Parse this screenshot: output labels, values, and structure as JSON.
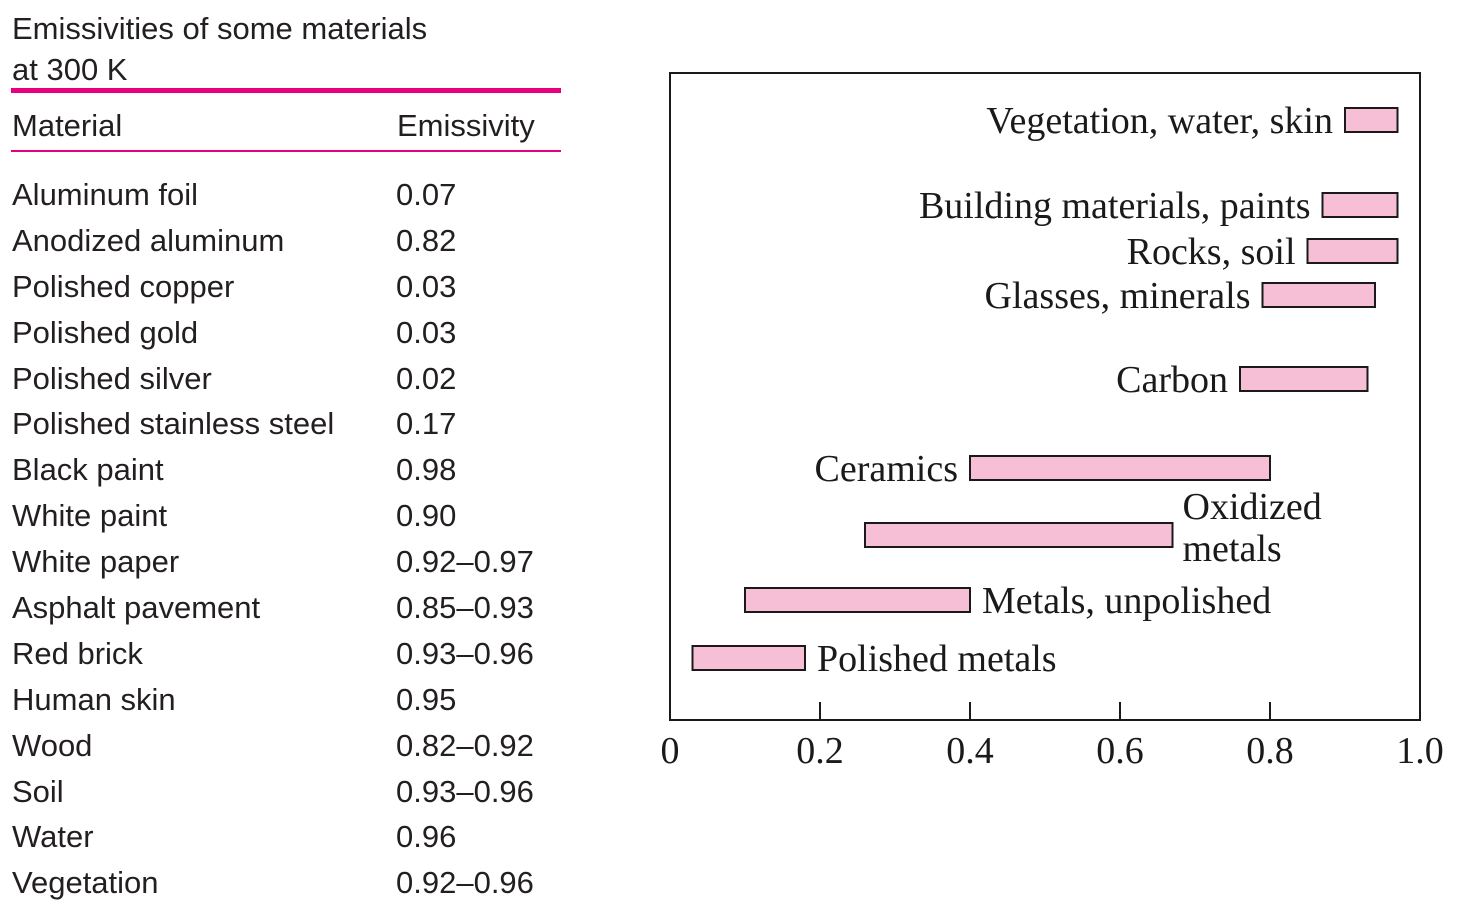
{
  "table": {
    "title_line1": "Emissivities of some materials",
    "title_line2": "at 300 K",
    "header_material": "Material",
    "header_emissivity": "Emissivity",
    "rows": [
      {
        "material": "Aluminum foil",
        "emissivity": "0.07"
      },
      {
        "material": "Anodized aluminum",
        "emissivity": "0.82"
      },
      {
        "material": "Polished copper",
        "emissivity": "0.03"
      },
      {
        "material": "Polished gold",
        "emissivity": "0.03"
      },
      {
        "material": "Polished silver",
        "emissivity": "0.02"
      },
      {
        "material": "Polished stainless steel",
        "emissivity": "0.17"
      },
      {
        "material": "Black paint",
        "emissivity": "0.98"
      },
      {
        "material": "White paint",
        "emissivity": "0.90"
      },
      {
        "material": "White paper",
        "emissivity": "0.92–0.97"
      },
      {
        "material": "Asphalt pavement",
        "emissivity": "0.85–0.93"
      },
      {
        "material": "Red brick",
        "emissivity": "0.93–0.96"
      },
      {
        "material": "Human skin",
        "emissivity": "0.95"
      },
      {
        "material": "Wood",
        "emissivity": "0.82–0.92"
      },
      {
        "material": "Soil",
        "emissivity": "0.93–0.96"
      },
      {
        "material": "Water",
        "emissivity": "0.96"
      },
      {
        "material": "Vegetation",
        "emissivity": "0.92–0.96"
      }
    ]
  },
  "colors": {
    "rule": "#e6007e",
    "bar_fill": "#f6bfd6",
    "bar_stroke": "#1a1a1a"
  },
  "chart_data": {
    "type": "bar",
    "orientation": "horizontal-range",
    "xlim": [
      0,
      1.0
    ],
    "x_ticks": [
      "0",
      "0.2",
      "0.4",
      "0.6",
      "0.8",
      "1.0"
    ],
    "grid": false,
    "legend": "none",
    "ranges": [
      {
        "label": "Vegetation, water, skin",
        "low": 0.9,
        "high": 0.97
      },
      {
        "label": "Building materials, paints",
        "low": 0.87,
        "high": 0.97
      },
      {
        "label": "Rocks, soil",
        "low": 0.85,
        "high": 0.97
      },
      {
        "label": "Glasses, minerals",
        "low": 0.79,
        "high": 0.94
      },
      {
        "label": "Carbon",
        "low": 0.76,
        "high": 0.93
      },
      {
        "label": "Ceramics",
        "low": 0.4,
        "high": 0.8
      },
      {
        "label_lines": [
          "Oxidized",
          "metals"
        ],
        "low": 0.26,
        "high": 0.67
      },
      {
        "label": "Metals, unpolished",
        "low": 0.1,
        "high": 0.4
      },
      {
        "label": "Polished metals",
        "low": 0.03,
        "high": 0.18
      }
    ]
  }
}
